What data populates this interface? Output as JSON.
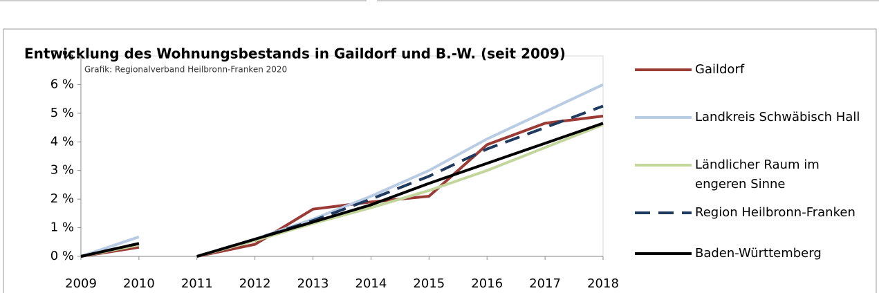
{
  "chart_data": {
    "type": "line",
    "title": "Entwicklung des Wohnungsbestands in Gaildorf und B.-W. (seit 2009)",
    "annotation": "Grafik: Regionalverband Heilbronn-Franken 2020",
    "x": [
      2009,
      2010,
      null,
      2011,
      2012,
      2013,
      2014,
      2015,
      2016,
      2017,
      2018
    ],
    "xlim": [
      2009,
      2018
    ],
    "xticks": [
      2009,
      2010,
      2011,
      2012,
      2013,
      2014,
      2015,
      2016,
      2017,
      2018
    ],
    "ylim": [
      0,
      7
    ],
    "yticks": [
      {
        "value": 0,
        "label": "0 %"
      },
      {
        "value": 1,
        "label": "1 %"
      },
      {
        "value": 2,
        "label": "2 %"
      },
      {
        "value": 3,
        "label": "3 %"
      },
      {
        "value": 4,
        "label": "4 %"
      },
      {
        "value": 5,
        "label": "5 %"
      },
      {
        "value": 6,
        "label": "6 %"
      },
      {
        "value": 7,
        "label": "7 %"
      }
    ],
    "legend": "right",
    "series": [
      {
        "name": "Gaildorf",
        "color": "#9b3b35",
        "values": [
          0,
          0.32,
          null,
          0,
          0.42,
          1.65,
          1.9,
          2.1,
          3.9,
          4.65,
          4.9
        ]
      },
      {
        "name": "Landkreis Schwäbisch Hall",
        "color": "#b8cce4",
        "values": [
          0,
          0.68,
          null,
          0,
          0.6,
          1.3,
          2.1,
          3.0,
          4.1,
          5.05,
          6.0
        ]
      },
      {
        "name": "Ländlicher Raum im engeren Sinne",
        "color": "#c3d69b",
        "values": [
          0,
          0.4,
          null,
          0,
          0.55,
          1.15,
          1.7,
          2.3,
          3.0,
          3.8,
          4.6
        ]
      },
      {
        "name": "Region Heilbronn-Franken",
        "color": "#1f3a5f",
        "dashed": true,
        "values": [
          0,
          0.45,
          null,
          0,
          0.6,
          1.25,
          2.0,
          2.8,
          3.75,
          4.5,
          5.25
        ]
      },
      {
        "name": "Baden-Württemberg",
        "color": "#000000",
        "values": [
          0,
          0.45,
          null,
          0,
          0.6,
          1.2,
          1.8,
          2.55,
          3.25,
          3.95,
          4.65
        ]
      }
    ]
  }
}
